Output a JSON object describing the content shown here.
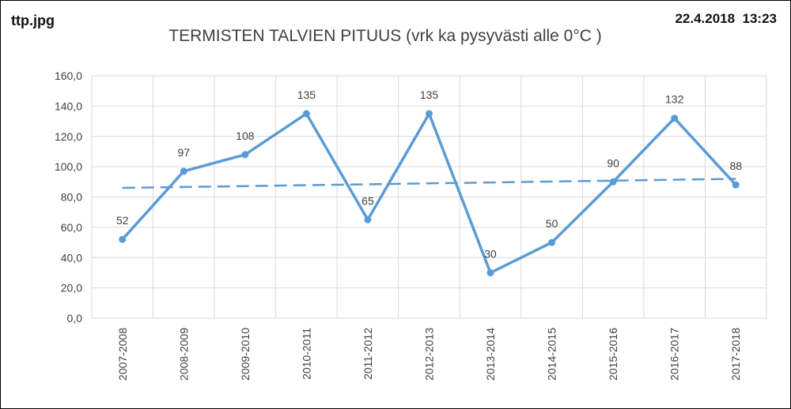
{
  "header": {
    "filename": "ttp.jpg",
    "timestamp": "22.4.2018  13:23"
  },
  "chart_data": {
    "type": "line",
    "title": "TERMISTEN TALVIEN PITUUS (vrk ka pysyvästi alle 0°C )",
    "xlabel": "",
    "ylabel": "",
    "categories": [
      "2007-2008",
      "2008-2009",
      "2009-2010",
      "2010-2011",
      "2011-2012",
      "2012-2013",
      "2013-2014",
      "2014-2015",
      "2015-2016",
      "2016-2017",
      "2017-2018"
    ],
    "series": [
      {
        "values": [
          52,
          97,
          108,
          135,
          65,
          135,
          30,
          50,
          90,
          132,
          88
        ],
        "data_labels": [
          "52",
          "97",
          "108",
          "135",
          "65",
          "135",
          "30",
          "50",
          "90",
          "132",
          "88"
        ],
        "color": "#5b9bd5"
      }
    ],
    "trendline": {
      "type": "linear",
      "style": "dashed",
      "color": "#5b9bd5",
      "start": 86,
      "end": 92
    },
    "ylim": [
      0,
      160
    ],
    "yticks": [
      "0,0",
      "20,0",
      "40,0",
      "60,0",
      "80,0",
      "100,0",
      "120,0",
      "140,0",
      "160,0"
    ],
    "grid": true,
    "legend": "none"
  }
}
